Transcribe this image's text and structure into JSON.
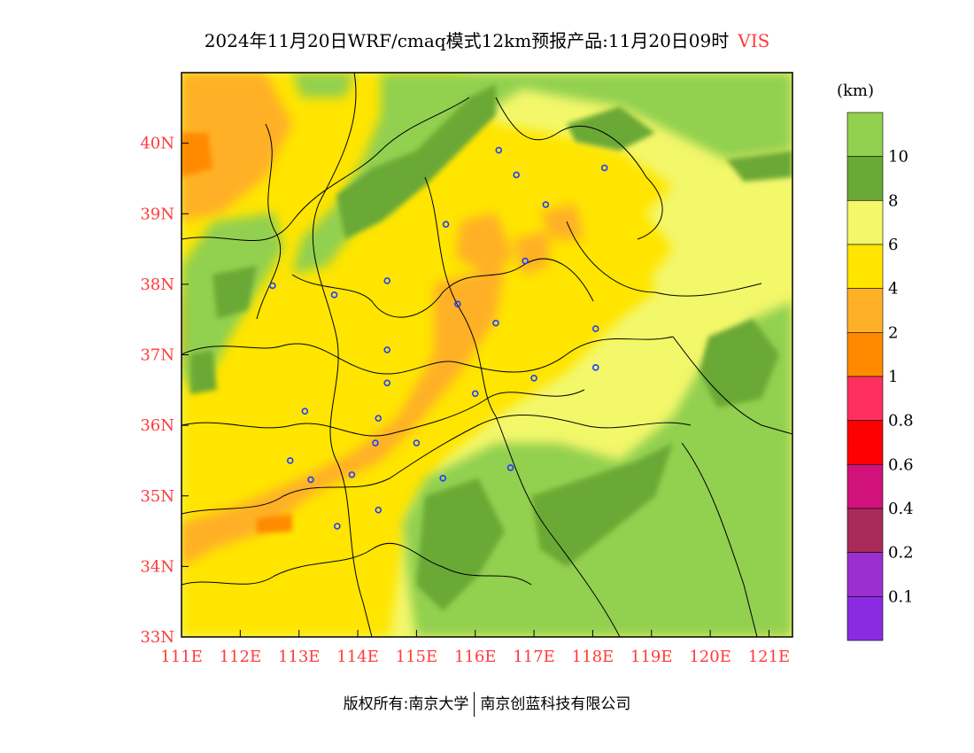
{
  "title": {
    "text": "2024年11月20日WRF/cmaq模式12km预报产品:11月20日09时",
    "variable": "VIS"
  },
  "map": {
    "lon_range": [
      111,
      121.4
    ],
    "lat_range": [
      33,
      41
    ],
    "x_ticks": [
      "111E",
      "112E",
      "113E",
      "114E",
      "115E",
      "116E",
      "117E",
      "118E",
      "119E",
      "120E",
      "121E"
    ],
    "x_tick_values": [
      111,
      112,
      113,
      114,
      115,
      116,
      117,
      118,
      119,
      120,
      121
    ],
    "y_ticks": [
      "33N",
      "34N",
      "35N",
      "36N",
      "37N",
      "38N",
      "39N",
      "40N"
    ],
    "y_tick_values": [
      33,
      34,
      35,
      36,
      37,
      38,
      39,
      40
    ],
    "stations": [
      {
        "lon": 116.4,
        "lat": 39.9
      },
      {
        "lon": 116.7,
        "lat": 39.55
      },
      {
        "lon": 117.2,
        "lat": 39.13
      },
      {
        "lon": 118.2,
        "lat": 39.65
      },
      {
        "lon": 115.5,
        "lat": 38.85
      },
      {
        "lon": 116.85,
        "lat": 38.33
      },
      {
        "lon": 112.55,
        "lat": 37.98
      },
      {
        "lon": 113.6,
        "lat": 37.85
      },
      {
        "lon": 114.5,
        "lat": 38.05
      },
      {
        "lon": 115.7,
        "lat": 37.72
      },
      {
        "lon": 116.35,
        "lat": 37.45
      },
      {
        "lon": 118.05,
        "lat": 37.37
      },
      {
        "lon": 114.5,
        "lat": 37.07
      },
      {
        "lon": 114.5,
        "lat": 36.6
      },
      {
        "lon": 116.0,
        "lat": 36.45
      },
      {
        "lon": 117.0,
        "lat": 36.67
      },
      {
        "lon": 118.05,
        "lat": 36.82
      },
      {
        "lon": 113.1,
        "lat": 36.2
      },
      {
        "lon": 114.35,
        "lat": 36.1
      },
      {
        "lon": 114.3,
        "lat": 35.75
      },
      {
        "lon": 115.0,
        "lat": 35.75
      },
      {
        "lon": 112.85,
        "lat": 35.5
      },
      {
        "lon": 113.2,
        "lat": 35.23
      },
      {
        "lon": 113.9,
        "lat": 35.3
      },
      {
        "lon": 115.45,
        "lat": 35.25
      },
      {
        "lon": 116.6,
        "lat": 35.4
      },
      {
        "lon": 114.35,
        "lat": 34.8
      },
      {
        "lon": 113.65,
        "lat": 34.57
      }
    ]
  },
  "colorbar": {
    "unit": "(km)",
    "colors": [
      "#92d050",
      "#6aa936",
      "#f3f76a",
      "#ffe500",
      "#ffb027",
      "#ff8a00",
      "#ff3060",
      "#ff0000",
      "#d0127a",
      "#a82b59",
      "#9b30d0",
      "#8a2be2"
    ],
    "labels": [
      "10",
      "8",
      "6",
      "4",
      "2",
      "1",
      "0.8",
      "0.6",
      "0.4",
      "0.2",
      "0.1"
    ]
  },
  "footer": {
    "left": "版权所有:南京大学",
    "right": "南京创蓝科技有限公司"
  }
}
